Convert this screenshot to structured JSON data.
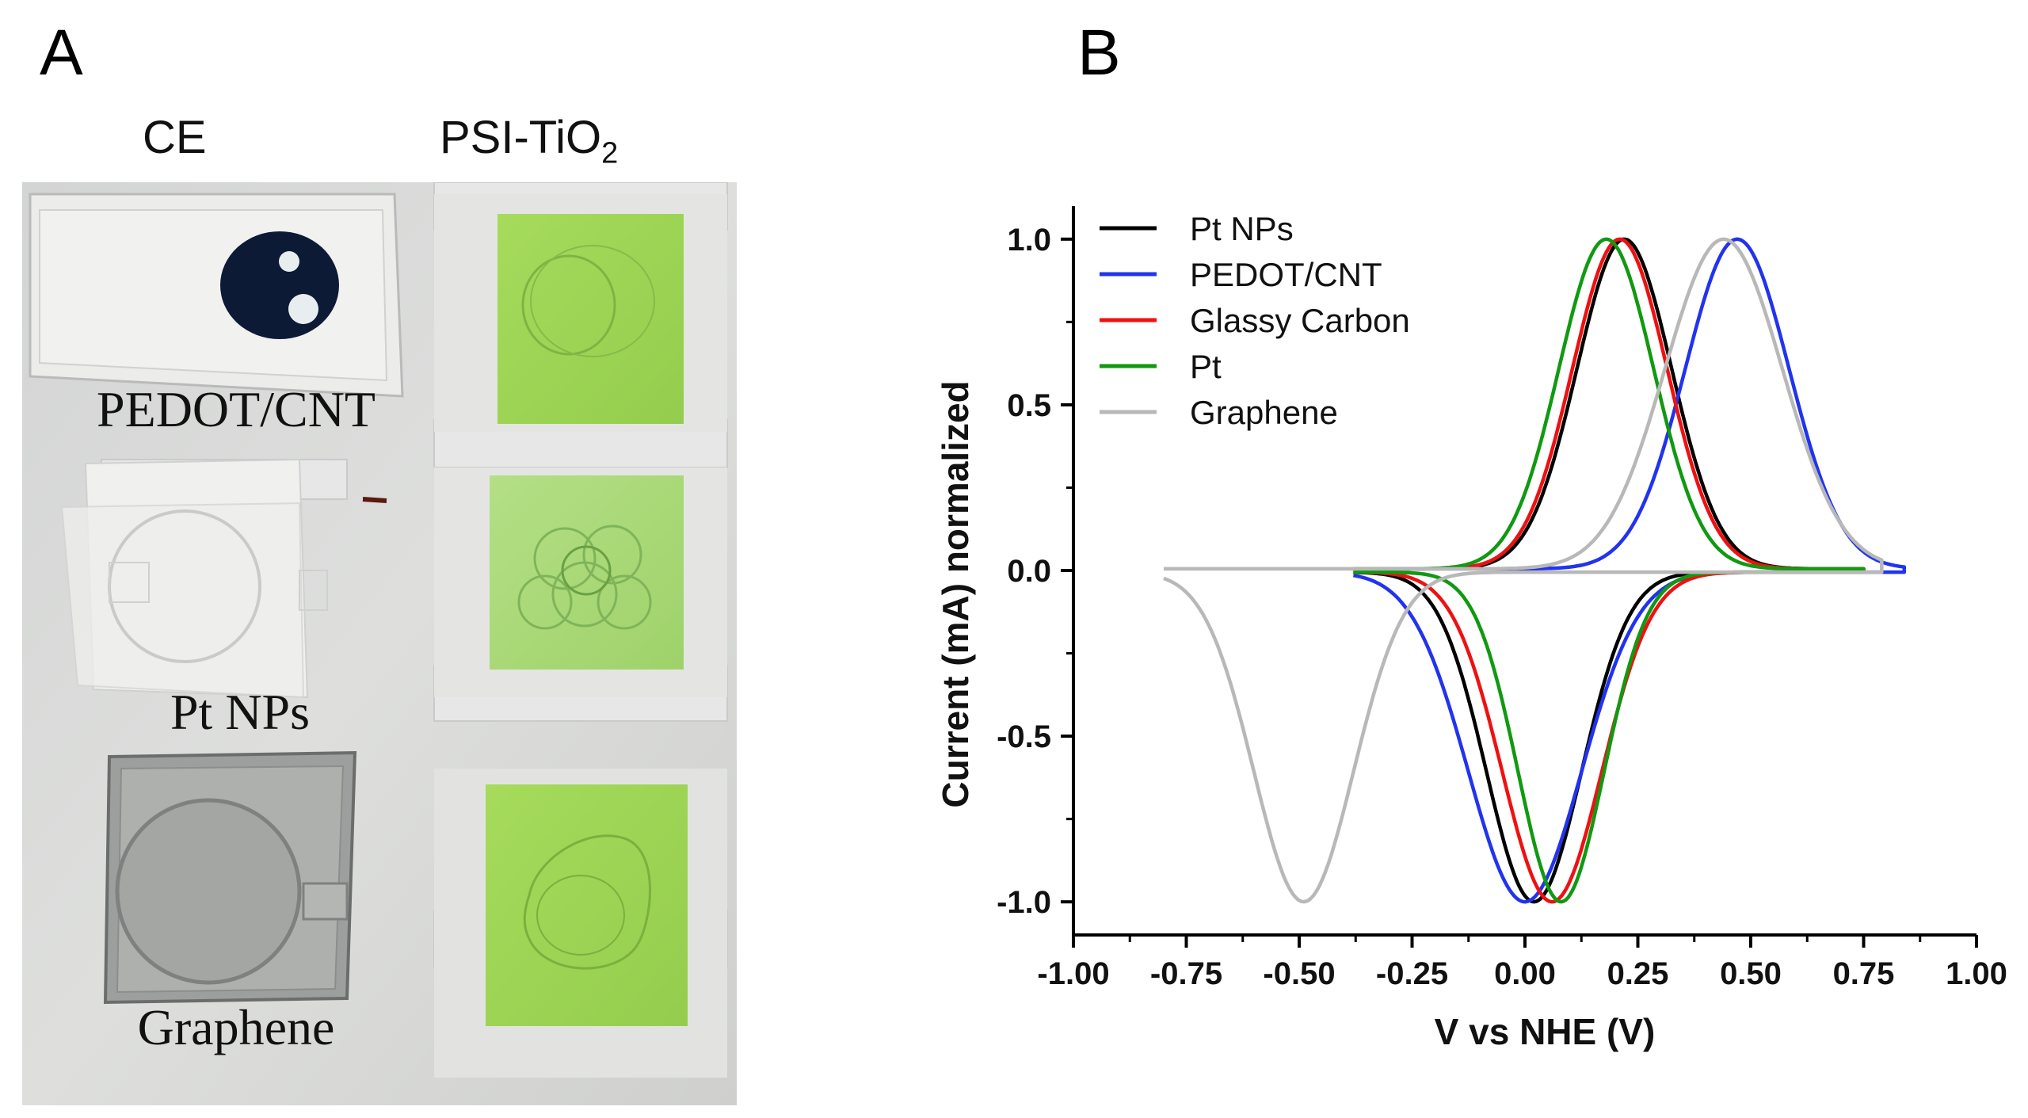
{
  "panels": {
    "a": {
      "letter": "A"
    },
    "b": {
      "letter": "B"
    }
  },
  "photo": {
    "col_headers": {
      "ce": "CE",
      "psi_main": "PSI-TiO",
      "psi_sub": "2"
    },
    "samples": [
      {
        "label": "PEDOT/CNT"
      },
      {
        "label": "Pt NPs"
      },
      {
        "label": "Graphene"
      }
    ],
    "colors": {
      "green_film": "#9fd65a",
      "dark_spot": "#0c1a36",
      "background": "#d9dad8"
    }
  },
  "chart_data": {
    "type": "line",
    "title": "",
    "xlabel": "V vs NHE (V)",
    "ylabel": "Current (mA) normalized",
    "xlim": [
      -1.0,
      1.0
    ],
    "ylim": [
      -1.1,
      1.1
    ],
    "xticks": [
      "-1.00",
      "-0.75",
      "-0.50",
      "-0.25",
      "0.00",
      "0.25",
      "0.50",
      "0.75",
      "1.00"
    ],
    "xtick_values": [
      -1.0,
      -0.75,
      -0.5,
      -0.25,
      0.0,
      0.25,
      0.5,
      0.75,
      1.0
    ],
    "yticks": [
      "-1.0",
      "-0.5",
      "0.0",
      "0.5",
      "1.0"
    ],
    "ytick_values": [
      -1.0,
      -0.5,
      0.0,
      0.5,
      1.0
    ],
    "legend_position": "top-left",
    "series": [
      {
        "name": "Pt NPs",
        "color": "#000000",
        "x_start": -0.38,
        "x_end": 0.75,
        "ox_peak": 0.22,
        "ox_width": 0.105,
        "red_peak": 0.02,
        "red_width": 0.105
      },
      {
        "name": "PEDOT/CNT",
        "color": "#2233ee",
        "x_start": -0.38,
        "x_end": 0.84,
        "ox_peak": 0.47,
        "ox_width": 0.115,
        "red_peak": 0.0,
        "red_width": 0.125
      },
      {
        "name": "Glassy Carbon",
        "color": "#ee1111",
        "x_start": -0.38,
        "x_end": 0.75,
        "ox_peak": 0.21,
        "ox_width": 0.105,
        "red_peak": 0.06,
        "red_width": 0.11
      },
      {
        "name": "Pt",
        "color": "#119911",
        "x_start": -0.38,
        "x_end": 0.75,
        "ox_peak": 0.18,
        "ox_width": 0.105,
        "red_peak": 0.08,
        "red_width": 0.095
      },
      {
        "name": "Graphene",
        "color": "#b8b8b8",
        "x_start": -0.8,
        "x_end": 0.79,
        "ox_peak": 0.44,
        "ox_width": 0.13,
        "red_peak": -0.49,
        "red_width": 0.11
      }
    ]
  }
}
